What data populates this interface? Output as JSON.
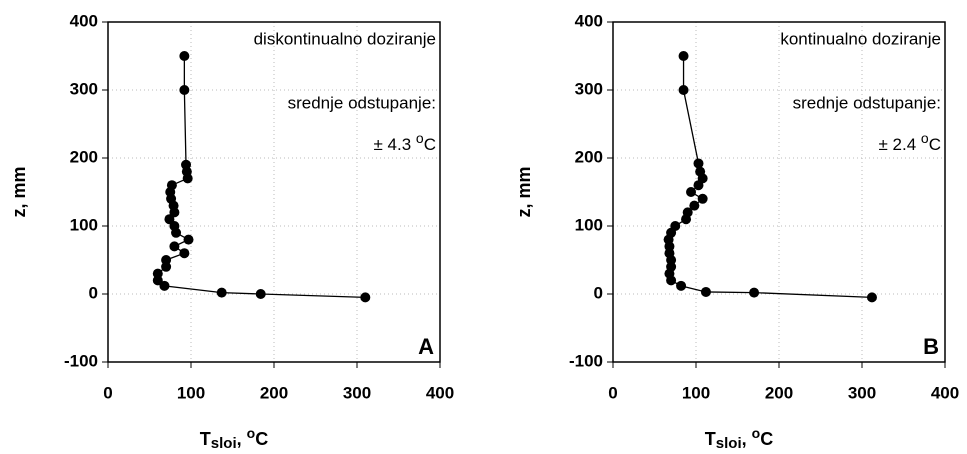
{
  "chart_data": [
    {
      "type": "scatter",
      "grid": true,
      "xlim": [
        0,
        400
      ],
      "xticks": [
        0,
        100,
        200,
        300,
        400
      ],
      "ylim": [
        -100,
        400
      ],
      "yticks": [
        -100,
        0,
        100,
        200,
        300,
        400
      ],
      "ylabel": "z, mm",
      "xlabel": {
        "main": "T",
        "sub": "sloi",
        "sep": ", ",
        "sup": "o",
        "unit": "C"
      },
      "annotations": [
        "diskontinualno doziranje",
        "srednje odstupanje:"
      ],
      "deviation": {
        "text": "± 4.3 ",
        "sup": "o",
        "unit": "C"
      },
      "panel": "A",
      "x": [
        92,
        92,
        94,
        95,
        96,
        77,
        75,
        76,
        79,
        80,
        74,
        80,
        82,
        97,
        80,
        92,
        70,
        70,
        60,
        60,
        68,
        137,
        184,
        310
      ],
      "series": [
        {
          "color": "#000000",
          "values": [
            350,
            300,
            190,
            180,
            170,
            160,
            150,
            140,
            130,
            120,
            110,
            100,
            90,
            80,
            70,
            60,
            50,
            40,
            30,
            20,
            12,
            2,
            0,
            -5
          ]
        }
      ]
    },
    {
      "type": "scatter",
      "grid": true,
      "xlim": [
        0,
        400
      ],
      "xticks": [
        0,
        100,
        200,
        300,
        400
      ],
      "ylim": [
        -100,
        400
      ],
      "yticks": [
        -100,
        0,
        100,
        200,
        300,
        400
      ],
      "ylabel": "z, mm",
      "xlabel": {
        "main": "T",
        "sub": "sloi",
        "sep": ", ",
        "sup": "o",
        "unit": "C"
      },
      "annotations": [
        "kontinualno doziranje",
        "srednje odstupanje:"
      ],
      "deviation": {
        "text": "± 2.4 ",
        "sup": "o",
        "unit": "C"
      },
      "panel": "B",
      "x": [
        85,
        85,
        103,
        105,
        108,
        103,
        94,
        108,
        98,
        90,
        88,
        75,
        70,
        67,
        68,
        68,
        70,
        70,
        68,
        70,
        82,
        112,
        170,
        312
      ],
      "series": [
        {
          "color": "#000000",
          "values": [
            350,
            300,
            192,
            180,
            170,
            160,
            150,
            140,
            130,
            120,
            110,
            100,
            90,
            80,
            70,
            60,
            50,
            40,
            30,
            20,
            12,
            3,
            2,
            -5
          ]
        }
      ]
    }
  ]
}
